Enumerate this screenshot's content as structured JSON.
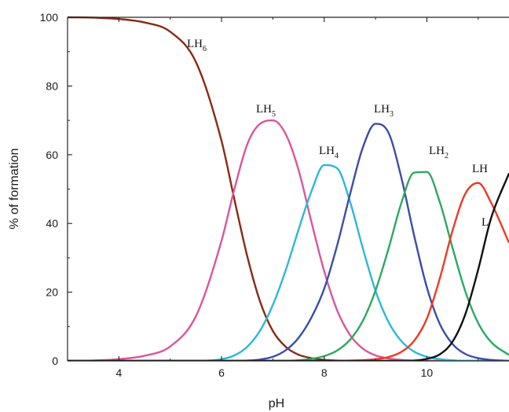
{
  "chart_data": {
    "type": "line",
    "xlabel": "pH",
    "ylabel": "% of formation",
    "xlim": [
      3.0,
      11.6
    ],
    "ylim": [
      0,
      100
    ],
    "x_ticks": [
      4,
      6,
      8,
      10
    ],
    "y_ticks": [
      0,
      20,
      40,
      60,
      80,
      100
    ],
    "x": [
      3.0,
      3.5,
      4.0,
      4.5,
      5.0,
      5.5,
      6.0,
      6.25,
      6.5,
      6.75,
      7.0,
      7.25,
      7.5,
      7.75,
      8.0,
      8.25,
      8.5,
      8.75,
      9.0,
      9.25,
      9.5,
      9.75,
      10.0,
      10.25,
      10.5,
      10.75,
      11.0,
      11.25,
      11.6
    ],
    "series": [
      {
        "name": "LH6",
        "label": "LH",
        "sub": "6",
        "color": "#8B2A14",
        "values": [
          100,
          99.9,
          99.5,
          98.5,
          95.8,
          87,
          64,
          47,
          30.5,
          17.3,
          8.7,
          4.1,
          1.8,
          0.8,
          0.3,
          0.1,
          0,
          0,
          0,
          0,
          0,
          0,
          0,
          0,
          0,
          0,
          0,
          0,
          0
        ]
      },
      {
        "name": "LH5",
        "label": "LH",
        "sub": "5",
        "color": "#D9569C",
        "values": [
          0,
          0.1,
          0.5,
          1.5,
          4.2,
          13,
          35,
          50,
          63,
          69,
          70,
          66,
          55.6,
          40.5,
          26.1,
          14.8,
          7.6,
          3.6,
          1.6,
          0.7,
          0.3,
          0.1,
          0,
          0,
          0,
          0,
          0,
          0,
          0
        ]
      },
      {
        "name": "LH4",
        "label": "LH",
        "sub": "4",
        "color": "#2EB7D9",
        "values": [
          0,
          0,
          0,
          0,
          0,
          0,
          0.5,
          1.6,
          4.1,
          8.8,
          16.3,
          26.4,
          38.2,
          49.3,
          57.0,
          56.1,
          46.5,
          32.9,
          20.4,
          11.4,
          5.8,
          2.7,
          1.2,
          0.5,
          0.2,
          0,
          0,
          0,
          0
        ]
      },
      {
        "name": "LH3",
        "label": "LH",
        "sub": "3",
        "color": "#3B4DAA",
        "values": [
          0,
          0,
          0,
          0,
          0,
          0,
          0,
          0,
          0.1,
          0.4,
          1.2,
          3.1,
          6.7,
          12.6,
          21.0,
          33.5,
          48.3,
          62.0,
          69.0,
          66.5,
          53.5,
          36.6,
          21.4,
          10.8,
          4.9,
          2.0,
          0.8,
          0.3,
          0
        ]
      },
      {
        "name": "LH2",
        "label": "LH",
        "sub": "2",
        "color": "#2DA862",
        "values": [
          0,
          0,
          0,
          0,
          0,
          0,
          0,
          0,
          0,
          0,
          0,
          0,
          0.2,
          0.6,
          1.4,
          3.0,
          6.1,
          11.6,
          20.5,
          32.5,
          45.8,
          54.8,
          55.0,
          46.3,
          32.9,
          20.2,
          11.0,
          5.5,
          1.7
        ]
      },
      {
        "name": "LH",
        "label": "LH",
        "sub": "",
        "color": "#EE3A22",
        "values": [
          0,
          0,
          0,
          0,
          0,
          0,
          0,
          0,
          0,
          0,
          0,
          0,
          0,
          0,
          0,
          0,
          0.1,
          0.2,
          0.5,
          1.1,
          2.6,
          5.8,
          12.3,
          23.9,
          37.9,
          48.7,
          51.8,
          46.1,
          34.4
        ]
      },
      {
        "name": "L",
        "label": "L",
        "sub": "",
        "color": "#111111",
        "values": [
          0,
          0,
          0,
          0,
          0,
          0,
          0,
          0,
          0,
          0,
          0,
          0,
          0,
          0,
          0,
          0,
          0,
          0,
          0,
          0,
          0,
          0.1,
          0.6,
          1.9,
          5.6,
          13.6,
          26.6,
          41.5,
          54.6
        ]
      }
    ]
  }
}
